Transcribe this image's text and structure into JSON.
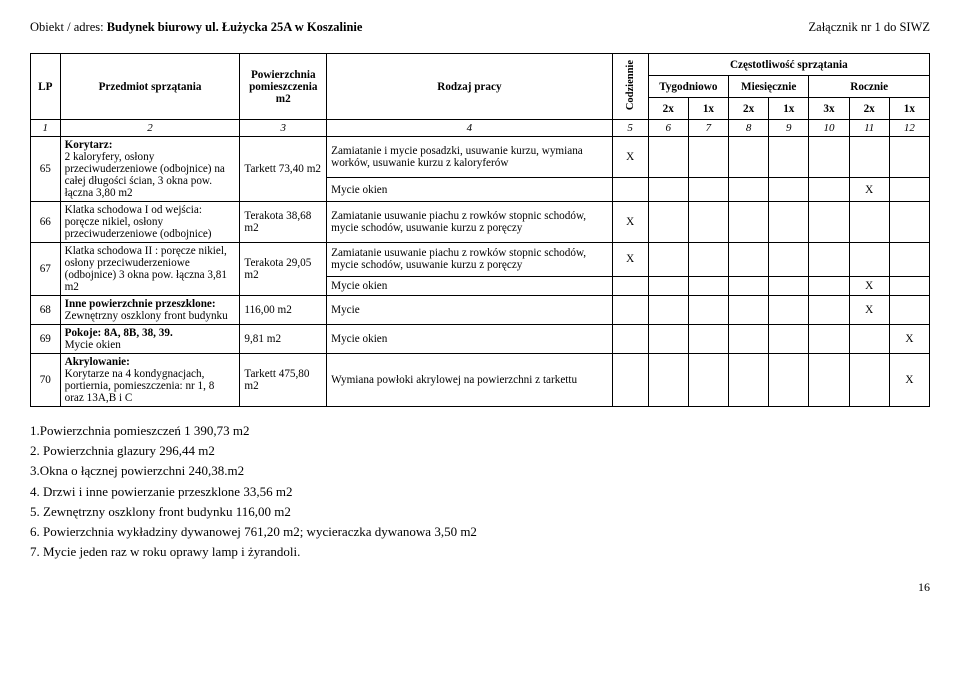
{
  "header": {
    "obj_label": "Obiekt / adres: ",
    "obj_value": "Budynek biurowy ul. Łużycka 25A w Koszalinie",
    "attachment": "Załącznik nr 1 do SIWZ"
  },
  "thead": {
    "lp": "LP",
    "subject": "Przedmiot sprzątania",
    "area": "Powierzchnia pomieszczenia m2",
    "work": "Rodzaj pracy",
    "freq_title": "Częstotliwość sprzątania",
    "daily": "Codziennie",
    "weekly": "Tygodniowo",
    "monthly": "Miesięcznie",
    "yearly": "Rocznie",
    "sub": [
      "2x",
      "1x",
      "2x",
      "1x",
      "3x",
      "2x",
      "1x"
    ]
  },
  "idx_row": [
    "1",
    "2",
    "3",
    "4",
    "5",
    "6",
    "7",
    "8",
    "9",
    "10",
    "11",
    "12"
  ],
  "rows": [
    {
      "lp": "65",
      "subject": "Korytarz:\n2 kaloryfery, osłony przeciwuderzeniowe (odbojnice) na całej długości ścian, 3 okna pow. łączna 3,80 m2",
      "area": "Tarkett 73,40 m2",
      "works": [
        {
          "text": "Zamiatanie i mycie posadzki, usuwanie kurzu, wymiana worków, usuwanie kurzu z kaloryferów",
          "mark_col": 0
        },
        {
          "text": "Mycie okien",
          "mark_col": 6
        }
      ]
    },
    {
      "lp": "66",
      "subject": "Klatka schodowa I od wejścia: poręcze nikiel, osłony przeciwuderzeniowe (odbojnice)",
      "area": "Terakota 38,68 m2",
      "works": [
        {
          "text": "Zamiatanie usuwanie piachu z rowków stopnic schodów, mycie schodów, usuwanie kurzu z poręczy",
          "mark_col": 0
        }
      ]
    },
    {
      "lp": "67",
      "subject": "Klatka schodowa II : poręcze nikiel, osłony przeciwuderzeniowe (odbojnice) 3 okna pow. łączna 3,81 m2",
      "area": "Terakota 29,05 m2",
      "works": [
        {
          "text": "Zamiatanie usuwanie piachu z rowków stopnic schodów, mycie schodów, usuwanie kurzu z poręczy",
          "mark_col": 0
        },
        {
          "text": "Mycie okien",
          "mark_col": 6
        }
      ]
    },
    {
      "lp": "68",
      "subject": "Inne powierzchnie przeszklone:\nZewnętrzny oszklony front budynku",
      "area": "116,00 m2",
      "works": [
        {
          "text": "Mycie",
          "mark_col": 6
        }
      ]
    },
    {
      "lp": "69",
      "subject": "Pokoje: 8A, 8B, 38, 39.\nMycie okien",
      "area": "9,81 m2",
      "works": [
        {
          "text": "Mycie okien",
          "mark_col": 7
        }
      ]
    },
    {
      "lp": "70",
      "subject": "Akrylowanie:\nKorytarze na 4 kondygnacjach, portiernia, pomieszczenia: nr 1, 8 oraz 13A,B i C",
      "area": "Tarkett 475,80 m2",
      "works": [
        {
          "text": "Wymiana powłoki akrylowej na powierzchni z tarkettu",
          "mark_col": 7
        }
      ]
    }
  ],
  "summary": [
    "1.Powierzchnia pomieszczeń 1 390,73 m2",
    "2. Powierzchnia glazury 296,44 m2",
    "3.Okna o łącznej powierzchni 240,38.m2",
    "4. Drzwi i inne powierzanie przeszklone 33,56 m2",
    "5. Zewnętrzny oszklony front budynku 116,00 m2",
    "6. Powierzchnia wykładziny dywanowej 761,20 m2; wycieraczka dywanowa 3,50 m2",
    "7. Mycie jeden raz w roku oprawy lamp i żyrandoli."
  ],
  "page_number": "16"
}
